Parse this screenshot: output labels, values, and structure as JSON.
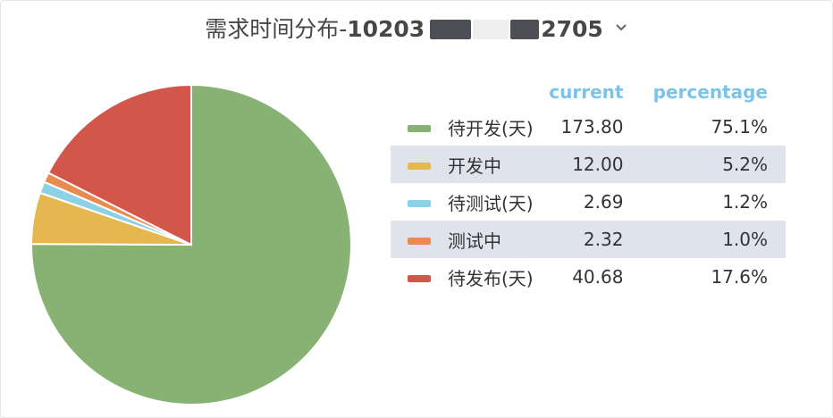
{
  "header": {
    "title_prefix": "需求时间分布-",
    "title_id": "10203",
    "title_suffix": "2705"
  },
  "legend": {
    "col_current": "current",
    "col_percentage": "percentage"
  },
  "chart_data": {
    "type": "pie",
    "title": "需求时间分布-10203…2705",
    "slices": [
      {
        "name": "待开发(天)",
        "value": 173.8,
        "value_label": "173.80",
        "percentage": "75.1%",
        "color": "#88b174"
      },
      {
        "name": "开发中",
        "value": 12.0,
        "value_label": "12.00",
        "percentage": "5.2%",
        "color": "#e4b84f"
      },
      {
        "name": "待测试(天)",
        "value": 2.69,
        "value_label": "2.69",
        "percentage": "1.2%",
        "color": "#8ed0e4"
      },
      {
        "name": "测试中",
        "value": 2.32,
        "value_label": "2.32",
        "percentage": "1.0%",
        "color": "#e98a4f"
      },
      {
        "name": "待发布(天)",
        "value": 40.68,
        "value_label": "40.68",
        "percentage": "17.6%",
        "color": "#d2564a"
      }
    ],
    "legend_position": "right"
  }
}
